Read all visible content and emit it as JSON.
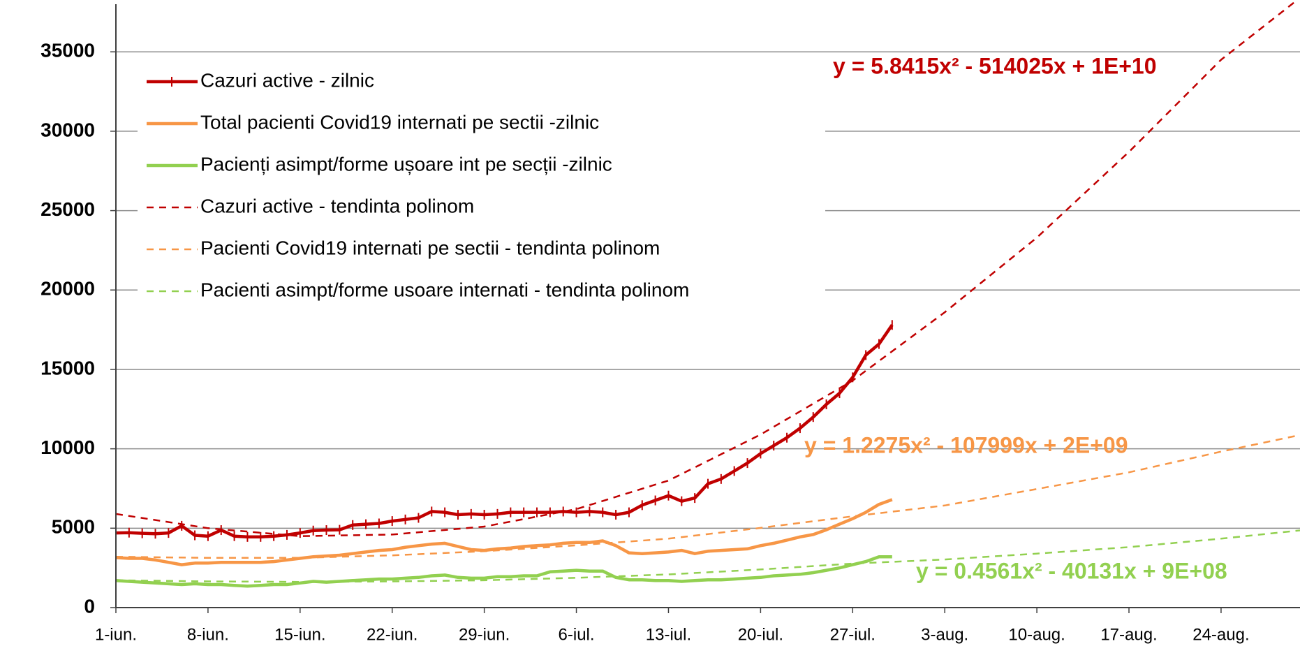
{
  "chart_data": {
    "type": "line",
    "x": [
      0,
      1,
      2,
      3,
      4,
      5,
      6,
      7,
      8,
      9,
      10,
      11,
      12,
      13,
      14,
      15,
      16,
      17,
      18,
      19,
      20,
      21,
      22,
      23,
      24,
      25,
      26,
      27,
      28,
      29,
      30,
      31,
      32,
      33,
      34,
      35,
      36,
      37,
      38,
      39,
      40,
      41,
      42,
      43,
      44,
      45,
      46,
      47,
      48,
      49,
      50,
      51,
      52,
      53,
      54,
      55,
      56,
      57,
      58,
      59
    ],
    "xlim": [
      0,
      90
    ],
    "xticks": [
      {
        "value": 0,
        "label": "1-iun."
      },
      {
        "value": 7,
        "label": "8-iun."
      },
      {
        "value": 14,
        "label": "15-iun."
      },
      {
        "value": 21,
        "label": "22-iun."
      },
      {
        "value": 28,
        "label": "29-iun."
      },
      {
        "value": 35,
        "label": "6-iul."
      },
      {
        "value": 42,
        "label": "13-iul."
      },
      {
        "value": 49,
        "label": "20-iul."
      },
      {
        "value": 56,
        "label": "27-iul."
      },
      {
        "value": 63,
        "label": "3-aug."
      },
      {
        "value": 70,
        "label": "10-aug."
      },
      {
        "value": 77,
        "label": "17-aug."
      },
      {
        "value": 84,
        "label": "24-aug."
      }
    ],
    "ylim": [
      0,
      38000
    ],
    "yticks": [
      0,
      5000,
      10000,
      15000,
      20000,
      25000,
      30000,
      35000
    ],
    "grid": true,
    "legend": "upper left",
    "series": [
      {
        "name": "Cazuri active - zilnic",
        "color": "#c00000",
        "style": "solid",
        "markers": true,
        "values": [
          4700,
          4720,
          4680,
          4650,
          4700,
          5150,
          4550,
          4500,
          4880,
          4500,
          4450,
          4450,
          4500,
          4580,
          4700,
          4850,
          4880,
          4900,
          5200,
          5250,
          5300,
          5450,
          5550,
          5650,
          6050,
          6000,
          5850,
          5900,
          5850,
          5900,
          6000,
          6000,
          6000,
          6000,
          6050,
          6000,
          6050,
          6000,
          5850,
          6000,
          6450,
          6750,
          7050,
          6700,
          6900,
          7800,
          8100,
          8600,
          9100,
          9700,
          10200,
          10700,
          11300,
          12000,
          12800,
          13500,
          14500,
          15900,
          16600,
          17800
        ]
      },
      {
        "name": "Total pacienti Covid19 internati pe sectii -zilnic",
        "color": "#f79646",
        "style": "solid",
        "values": [
          3150,
          3100,
          3100,
          3000,
          2850,
          2700,
          2800,
          2800,
          2850,
          2850,
          2850,
          2850,
          2900,
          3000,
          3100,
          3200,
          3250,
          3300,
          3400,
          3500,
          3600,
          3650,
          3800,
          3900,
          4000,
          4050,
          3850,
          3650,
          3600,
          3700,
          3750,
          3850,
          3900,
          3950,
          4050,
          4100,
          4100,
          4200,
          3900,
          3450,
          3400,
          3450,
          3500,
          3600,
          3400,
          3550,
          3600,
          3650,
          3700,
          3900,
          4050,
          4250,
          4450,
          4600,
          4900,
          5250,
          5600,
          6000,
          6500,
          6800
        ]
      },
      {
        "name": "Pacienți asimpt/forme ușoare int pe secții -zilnic",
        "color": "#92d050",
        "style": "solid",
        "values": [
          1700,
          1650,
          1600,
          1550,
          1500,
          1450,
          1500,
          1450,
          1450,
          1400,
          1350,
          1400,
          1450,
          1450,
          1550,
          1650,
          1600,
          1650,
          1700,
          1750,
          1800,
          1800,
          1850,
          1900,
          2000,
          2050,
          1900,
          1850,
          1850,
          1950,
          1950,
          2000,
          2000,
          2250,
          2300,
          2350,
          2300,
          2300,
          1900,
          1750,
          1750,
          1700,
          1700,
          1650,
          1700,
          1750,
          1750,
          1800,
          1850,
          1900,
          2000,
          2050,
          2100,
          2200,
          2350,
          2500,
          2700,
          2900,
          3200,
          3200
        ]
      },
      {
        "name": "Cazuri active - tendinta polinom",
        "color": "#c00000",
        "style": "dashed",
        "x": [
          0,
          7,
          14,
          21,
          28,
          35,
          42,
          49,
          56,
          63,
          70,
          77,
          84,
          90
        ],
        "values": [
          5900,
          5000,
          4500,
          4600,
          5100,
          6200,
          8000,
          10900,
          14300,
          18600,
          23300,
          28700,
          34500,
          38400
        ]
      },
      {
        "name": "Pacienti Covid19 internati pe sectii - tendinta polinom",
        "color": "#f79646",
        "style": "dashed",
        "x": [
          0,
          7,
          14,
          21,
          28,
          35,
          42,
          49,
          56,
          63,
          70,
          77,
          84,
          90
        ],
        "values": [
          3200,
          3130,
          3130,
          3290,
          3550,
          3920,
          4340,
          5020,
          5750,
          6430,
          7470,
          8520,
          9820,
          10870
        ]
      },
      {
        "name": "Pacienti asimpt/forme usoare internati - tendinta polinom",
        "color": "#92d050",
        "style": "dashed",
        "x": [
          0,
          7,
          14,
          21,
          28,
          35,
          42,
          49,
          56,
          63,
          70,
          77,
          84,
          90
        ],
        "values": [
          1720,
          1650,
          1620,
          1650,
          1720,
          1880,
          2090,
          2400,
          2770,
          3030,
          3400,
          3810,
          4340,
          4860
        ]
      }
    ],
    "annotations": [
      {
        "text": "y = 5.8415x² - 514025x + 1E+10",
        "color": "#c00000"
      },
      {
        "text": "y = 1.2275x² - 107999x + 2E+09",
        "color": "#f79646"
      },
      {
        "text": "y = 0.4561x² - 40131x + 9E+08",
        "color": "#92d050"
      }
    ]
  }
}
